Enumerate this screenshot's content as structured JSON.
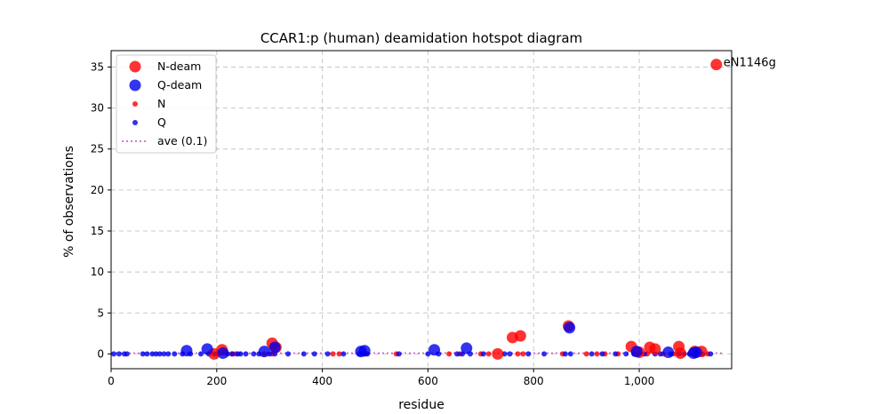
{
  "chart_data": {
    "type": "scatter",
    "title": "CCAR1:p (human) deamidation hotspot diagram",
    "xlabel": "residue",
    "ylabel": "% of observations",
    "xlim": [
      0,
      1175
    ],
    "ylim": [
      -1.8,
      37
    ],
    "xticks": [
      0,
      200,
      400,
      600,
      800,
      1000
    ],
    "xtick_labels": [
      "0",
      "200",
      "400",
      "600",
      "800",
      "1,000"
    ],
    "yticks": [
      0,
      5,
      10,
      15,
      20,
      25,
      30,
      35
    ],
    "ytick_labels": [
      "0",
      "5",
      "10",
      "15",
      "20",
      "25",
      "30",
      "35"
    ],
    "grid": true,
    "legend_position": "upper-left",
    "colors": {
      "n": "#ff0000",
      "q": "#0000ee",
      "ave": "#bf40bf"
    },
    "legend": [
      "N-deam",
      "Q-deam",
      "N",
      "Q",
      "ave (0.1)"
    ],
    "series": [
      {
        "name": "N",
        "marker": "small",
        "x": [
          200,
          228,
          236,
          290,
          305,
          420,
          432,
          480,
          540,
          640,
          660,
          700,
          715,
          770,
          780,
          855,
          900,
          920,
          935,
          960,
          1000,
          1015,
          1045,
          1065,
          1110,
          1130
        ],
        "y": [
          0,
          0,
          0,
          0,
          0,
          0,
          0,
          0,
          0,
          0,
          0,
          0,
          0,
          0,
          0,
          0,
          0,
          0,
          0,
          0,
          0,
          0,
          0,
          0,
          0,
          0
        ]
      },
      {
        "name": "Q",
        "marker": "small",
        "x": [
          5,
          15,
          25,
          30,
          60,
          68,
          78,
          85,
          92,
          100,
          108,
          120,
          135,
          150,
          170,
          185,
          195,
          220,
          230,
          240,
          245,
          255,
          270,
          280,
          300,
          310,
          335,
          365,
          385,
          410,
          440,
          470,
          485,
          545,
          600,
          620,
          655,
          665,
          680,
          705,
          745,
          755,
          790,
          820,
          860,
          870,
          910,
          930,
          955,
          975,
          990,
          1010,
          1030,
          1040,
          1060,
          1075,
          1085,
          1095,
          1120,
          1135
        ],
        "y": [
          0,
          0,
          0,
          0,
          0,
          0,
          0,
          0,
          0,
          0,
          0,
          0,
          0,
          0,
          0,
          0,
          0,
          0,
          0,
          0,
          0,
          0,
          0,
          0,
          0,
          0,
          0,
          0,
          0,
          0,
          0,
          0,
          0,
          0,
          0,
          0,
          0,
          0,
          0,
          0,
          0,
          0,
          0,
          0,
          0,
          0,
          0,
          0,
          0,
          0,
          0,
          0,
          0,
          0,
          0,
          0,
          0,
          0,
          0,
          0
        ]
      },
      {
        "name": "N-deam",
        "marker": "large",
        "x": [
          195,
          210,
          305,
          312,
          732,
          760,
          775,
          866,
          985,
          1000,
          1020,
          1030,
          1075,
          1078,
          1105,
          1118,
          1146
        ],
        "y": [
          0.0,
          0.5,
          1.3,
          0.8,
          0.0,
          2.0,
          2.2,
          3.4,
          0.9,
          0.2,
          0.8,
          0.6,
          0.9,
          0.1,
          0.3,
          0.3,
          35.3
        ]
      },
      {
        "name": "Q-deam",
        "marker": "large",
        "x": [
          143,
          182,
          212,
          290,
          310,
          473,
          480,
          612,
          673,
          868,
          995,
          1055,
          1103,
          1108
        ],
        "y": [
          0.4,
          0.6,
          0.1,
          0.3,
          0.8,
          0.3,
          0.4,
          0.5,
          0.7,
          3.2,
          0.3,
          0.2,
          0.1,
          0.2
        ]
      }
    ],
    "average_line": {
      "label": "ave (0.1)",
      "y": 0.1
    },
    "annotations": [
      {
        "text": "eN1146g",
        "x": 1146,
        "y": 35.3
      }
    ]
  }
}
